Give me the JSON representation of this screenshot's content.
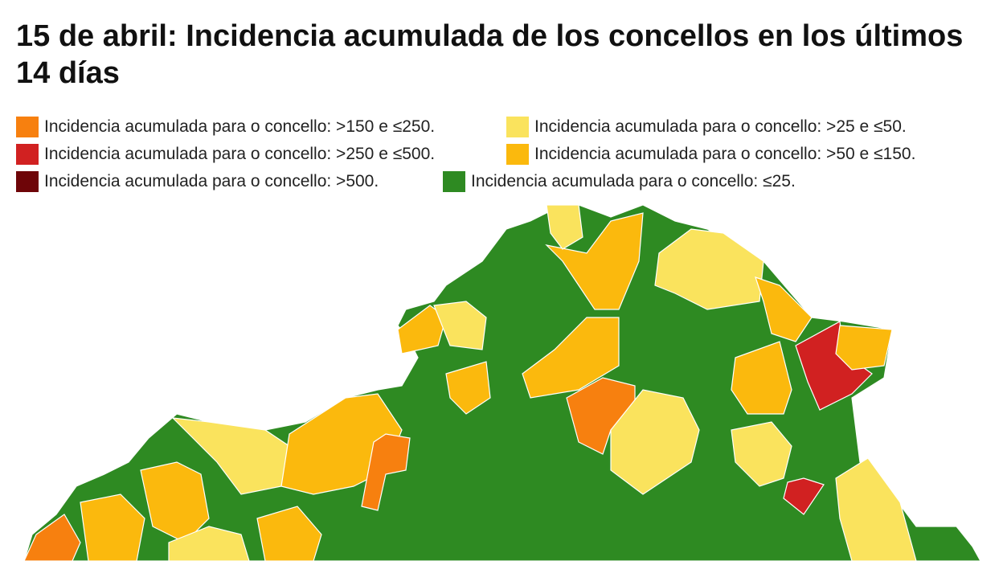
{
  "title": "15 de abril: Incidencia acumulada de los concellos en los últimos 14 días",
  "legend": [
    {
      "label": "Incidencia acumulada para o concello: >150 e ≤250.",
      "color": "#f7800f"
    },
    {
      "label": "Incidencia acumulada para o concello: >250 e ≤500.",
      "color": "#d12121"
    },
    {
      "label": "Incidencia acumulada para o concello: >500.",
      "color": "#6e0508"
    },
    {
      "label": "Incidencia acumulada para o concello: >25 e ≤50.",
      "color": "#fae35d"
    },
    {
      "label": "Incidencia acumulada para o concello: >50 e ≤150.",
      "color": "#fbb90d"
    },
    {
      "label": "Incidencia acumulada para o concello: ≤25.",
      "color": "#2e8a22"
    }
  ]
}
